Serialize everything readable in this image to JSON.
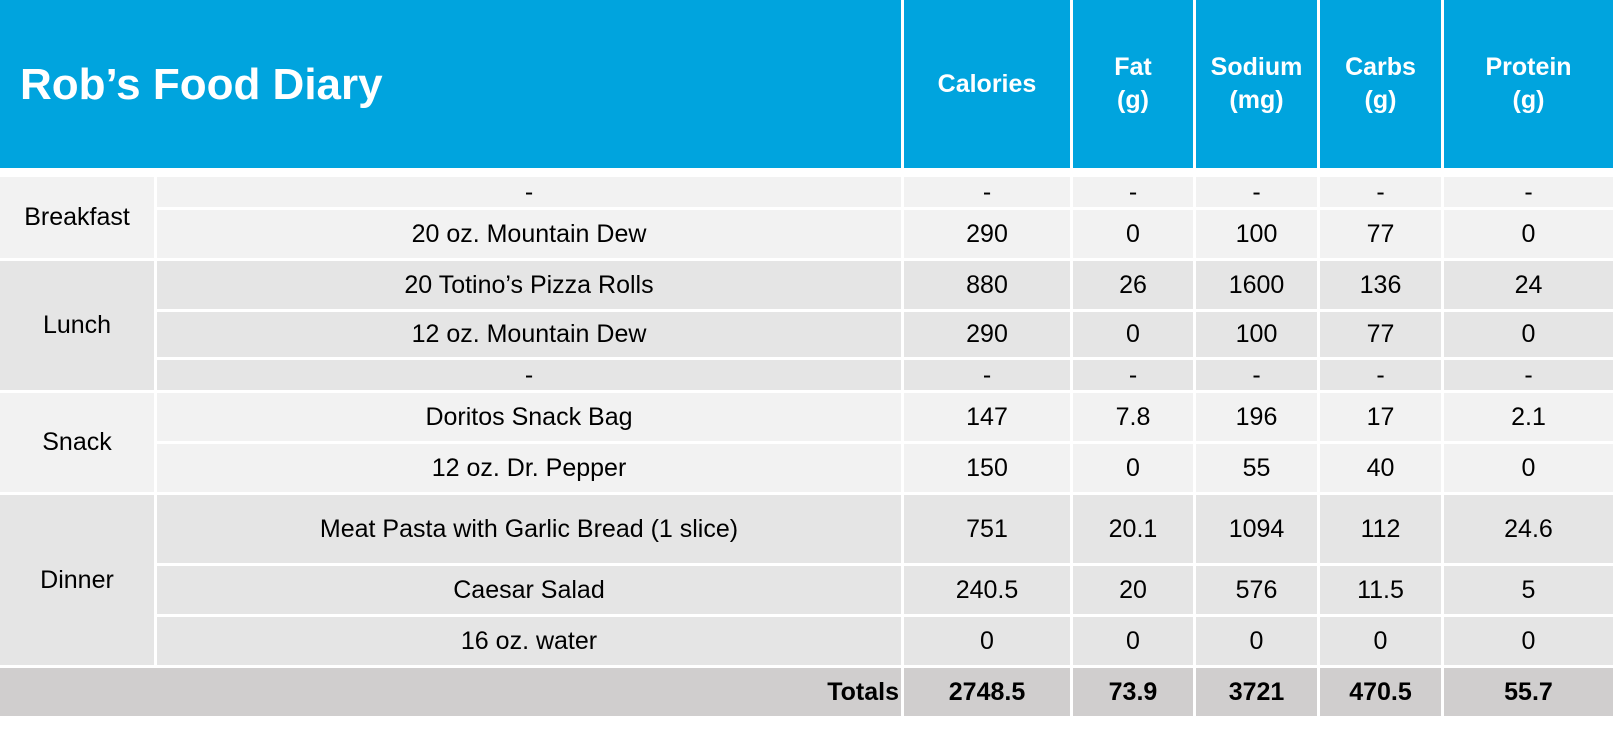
{
  "title": "Rob’s Food Diary",
  "columns": {
    "calories": "Calories",
    "fat": [
      "Fat",
      "(g)"
    ],
    "sodium": [
      "Sodium",
      "(mg)"
    ],
    "carbs": [
      "Carbs",
      "(g)"
    ],
    "protein": [
      "Protein",
      "(g)"
    ]
  },
  "meals": {
    "breakfast": {
      "label": "Breakfast",
      "rows": [
        {
          "item": "-",
          "calories": "-",
          "fat": "-",
          "sodium": "-",
          "carbs": "-",
          "protein": "-"
        },
        {
          "item": "20 oz. Mountain Dew",
          "calories": "290",
          "fat": "0",
          "sodium": "100",
          "carbs": "77",
          "protein": "0"
        }
      ]
    },
    "lunch": {
      "label": "Lunch",
      "rows": [
        {
          "item": "20 Totino’s Pizza Rolls",
          "calories": "880",
          "fat": "26",
          "sodium": "1600",
          "carbs": "136",
          "protein": "24"
        },
        {
          "item": "12 oz. Mountain Dew",
          "calories": "290",
          "fat": "0",
          "sodium": "100",
          "carbs": "77",
          "protein": "0"
        },
        {
          "item": "-",
          "calories": "-",
          "fat": "-",
          "sodium": "-",
          "carbs": "-",
          "protein": "-"
        }
      ]
    },
    "snack": {
      "label": "Snack",
      "rows": [
        {
          "item": "Doritos Snack Bag",
          "calories": "147",
          "fat": "7.8",
          "sodium": "196",
          "carbs": "17",
          "protein": "2.1"
        },
        {
          "item": "12 oz. Dr. Pepper",
          "calories": "150",
          "fat": "0",
          "sodium": "55",
          "carbs": "40",
          "protein": "0"
        }
      ]
    },
    "dinner": {
      "label": "Dinner",
      "rows": [
        {
          "item": "Meat Pasta with Garlic Bread (1 slice)",
          "calories": "751",
          "fat": "20.1",
          "sodium": "1094",
          "carbs": "112",
          "protein": "24.6"
        },
        {
          "item": "Caesar Salad",
          "calories": "240.5",
          "fat": "20",
          "sodium": "576",
          "carbs": "11.5",
          "protein": "5"
        },
        {
          "item": "16 oz. water",
          "calories": "0",
          "fat": "0",
          "sodium": "0",
          "carbs": "0",
          "protein": "0"
        }
      ]
    }
  },
  "totals": {
    "label": "Totals",
    "calories": "2748.5",
    "fat": "73.9",
    "sodium": "3721",
    "carbs": "470.5",
    "protein": "55.7"
  },
  "colors": {
    "header": "#00a4de",
    "row_light": "#f2f2f2",
    "row_dark": "#e5e5e5",
    "totals": "#d0cece"
  }
}
